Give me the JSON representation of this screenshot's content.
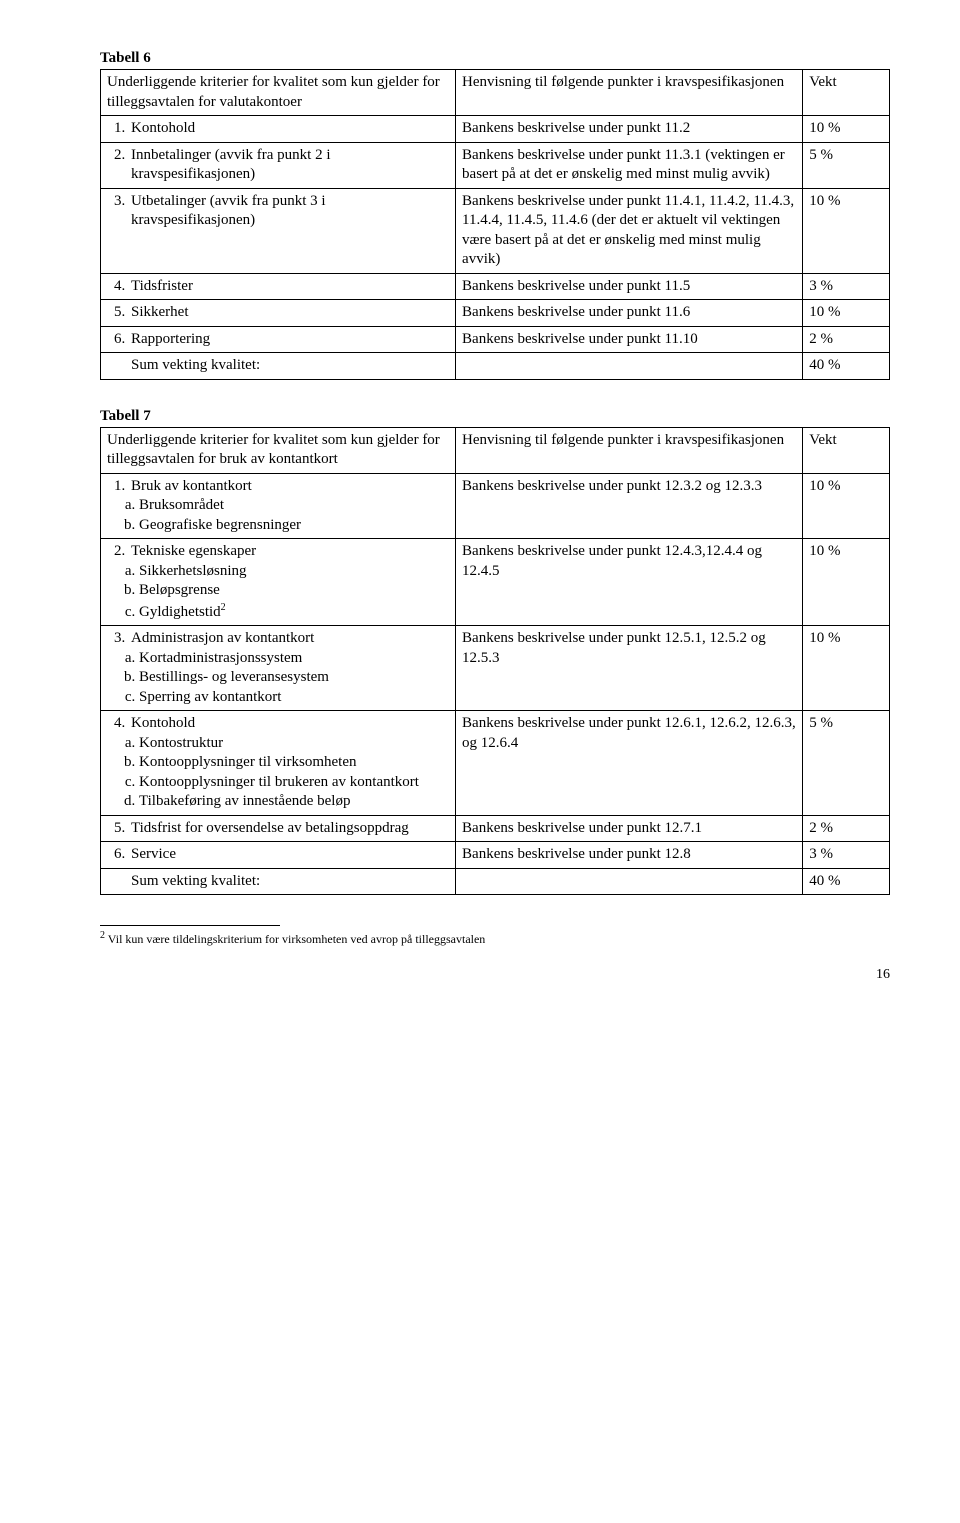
{
  "tabell6": {
    "title": "Tabell 6",
    "header": {
      "col1": "Underliggende kriterier for kvalitet som kun gjelder for tilleggsavtalen for valutakontoer",
      "col2": "Henvisning til følgende punkter i kravspesifikasjonen",
      "col3": "Vekt"
    },
    "rows": [
      {
        "c1": "Kontohold",
        "c2": "Bankens beskrivelse under punkt 11.2",
        "c3": "10 %"
      },
      {
        "c1": "Innbetalinger (avvik fra punkt 2 i kravspesifikasjonen)",
        "c2": "Bankens beskrivelse under punkt 11.3.1 (vektingen er basert på at det er ønskelig med minst mulig avvik)",
        "c3": "5 %"
      },
      {
        "c1": "Utbetalinger (avvik fra punkt 3 i kravspesifikasjonen)",
        "c2": "Bankens beskrivelse under punkt 11.4.1, 11.4.2, 11.4.3, 11.4.4, 11.4.5, 11.4.6 (der det er aktuelt vil vektingen være basert på at det er ønskelig med minst mulig avvik)",
        "c3": "10 %"
      },
      {
        "c1": "Tidsfrister",
        "c2": "Bankens beskrivelse under punkt 11.5",
        "c3": "3 %"
      },
      {
        "c1": "Sikkerhet",
        "c2": "Bankens beskrivelse under punkt 11.6",
        "c3": "10 %"
      },
      {
        "c1": "Rapportering",
        "c2": "Bankens beskrivelse under punkt 11.10",
        "c3": "2 %"
      }
    ],
    "sum": {
      "c1": "Sum vekting kvalitet:",
      "c3": "40 %"
    }
  },
  "tabell7": {
    "title": "Tabell 7",
    "header": {
      "col1": "Underliggende kriterier for kvalitet som kun gjelder for tilleggsavtalen for bruk av kontantkort",
      "col2": "Henvisning til følgende punkter i kravspesifikasjonen",
      "col3": "Vekt"
    },
    "rows": [
      {
        "c1_main": "Bruk av kontantkort",
        "c1_sub": [
          "Bruksområdet",
          "Geografiske begrensninger"
        ],
        "c2": "Bankens beskrivelse under punkt 12.3.2 og 12.3.3",
        "c3": "10 %"
      },
      {
        "c1_main": "Tekniske egenskaper",
        "c1_sub": [
          "Sikkerhetsløsning",
          "Beløpsgrense"
        ],
        "c1_sub_last": "Gyldighetstid",
        "c1_sup": "2",
        "c2": "Bankens beskrivelse under punkt 12.4.3,12.4.4 og 12.4.5",
        "c3": "10 %"
      },
      {
        "c1_main": "Administrasjon av kontantkort",
        "c1_sub": [
          "Kortadministrasjonssystem",
          "Bestillings- og leveransesystem",
          "Sperring av kontantkort"
        ],
        "c2": "Bankens beskrivelse under punkt 12.5.1, 12.5.2 og 12.5.3",
        "c3": "10 %"
      },
      {
        "c1_main": "Kontohold",
        "c1_sub": [
          "Kontostruktur",
          "Kontoopplysninger til virksomheten",
          "Kontoopplysninger til brukeren av kontantkort",
          "Tilbakeføring av innestående beløp"
        ],
        "c2": "Bankens beskrivelse under punkt 12.6.1, 12.6.2, 12.6.3, og 12.6.4",
        "c3": "5 %"
      },
      {
        "c1_main": "Tidsfrist for oversendelse av betalingsoppdrag",
        "c2": "Bankens beskrivelse under punkt 12.7.1",
        "c3": "2 %"
      },
      {
        "c1_main": "Service",
        "c2": "Bankens beskrivelse under punkt 12.8",
        "c3": "3 %"
      }
    ],
    "sum": {
      "c1": "Sum vekting kvalitet:",
      "c3": "40 %"
    }
  },
  "footnote": {
    "num": "2",
    "text": " Vil kun være tildelingskriterium for virksomheten ved avrop på tilleggsavtalen"
  },
  "page_number": "16"
}
